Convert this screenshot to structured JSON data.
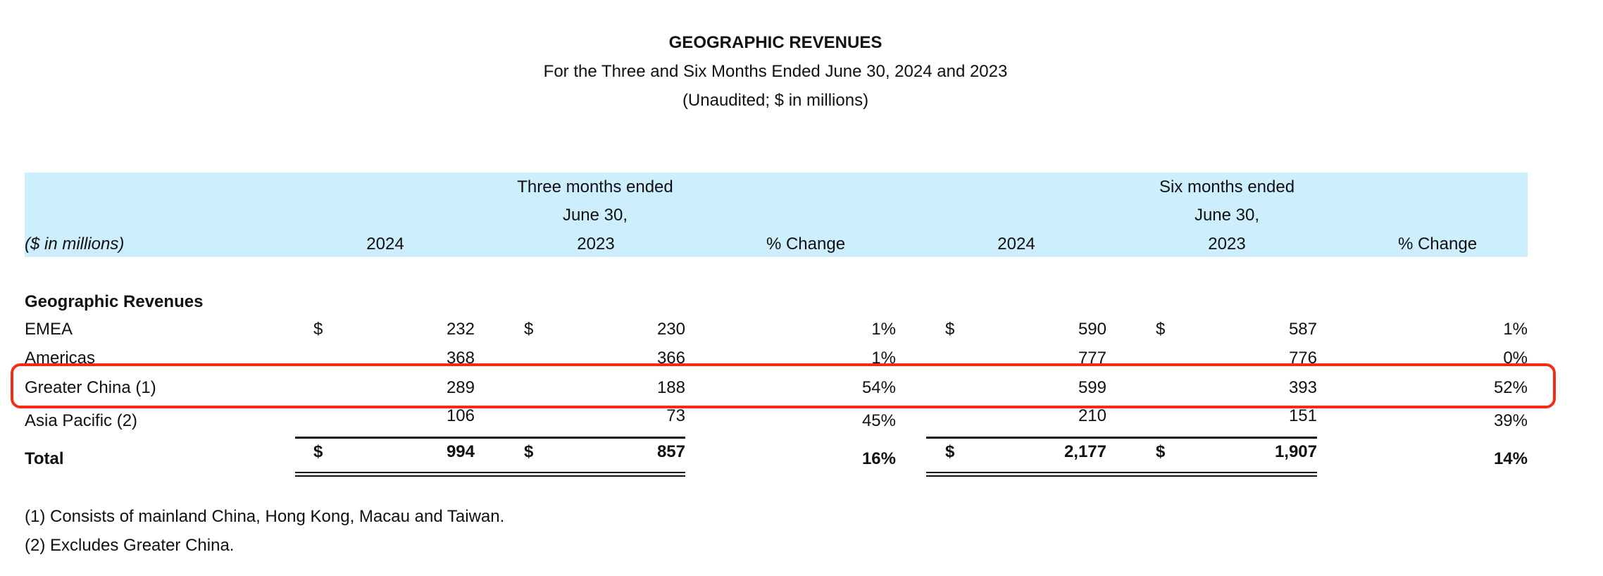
{
  "title": "GEOGRAPHIC REVENUES",
  "subtitle": "For the Three and Six Months Ended June 30, 2024 and 2023",
  "subtitle2": "(Unaudited; $ in millions)",
  "header": {
    "units_label": "($ in millions)",
    "three_months": "Three months ended",
    "six_months": "Six months ended",
    "date": "June 30,",
    "y2024": "2024",
    "y2023": "2023",
    "pct_change": "% Change"
  },
  "section_label": "Geographic Revenues",
  "currency": "$",
  "rows": [
    {
      "label": "EMEA",
      "q24": "232",
      "q23": "230",
      "qchg": "1%",
      "s24": "590",
      "s23": "587",
      "schg": "1%",
      "dollar": true
    },
    {
      "label": "Americas",
      "q24": "368",
      "q23": "366",
      "qchg": "1%",
      "s24": "777",
      "s23": "776",
      "schg": "0%"
    },
    {
      "label": "Greater China (1)",
      "q24": "289",
      "q23": "188",
      "qchg": "54%",
      "s24": "599",
      "s23": "393",
      "schg": "52%",
      "highlighted": true
    },
    {
      "label": "Asia Pacific (2)",
      "q24": "106",
      "q23": "73",
      "qchg": "45%",
      "s24": "210",
      "s23": "151",
      "schg": "39%"
    }
  ],
  "total": {
    "label": "Total",
    "q24": "994",
    "q23": "857",
    "qchg": "16%",
    "s24": "2,177",
    "s23": "1,907",
    "schg": "14%"
  },
  "footnotes": [
    "(1) Consists of mainland China, Hong Kong, Macau and Taiwan.",
    "(2) Excludes Greater China."
  ],
  "colors": {
    "header_band": "#cdeefd",
    "highlight_border": "#f52b14"
  }
}
